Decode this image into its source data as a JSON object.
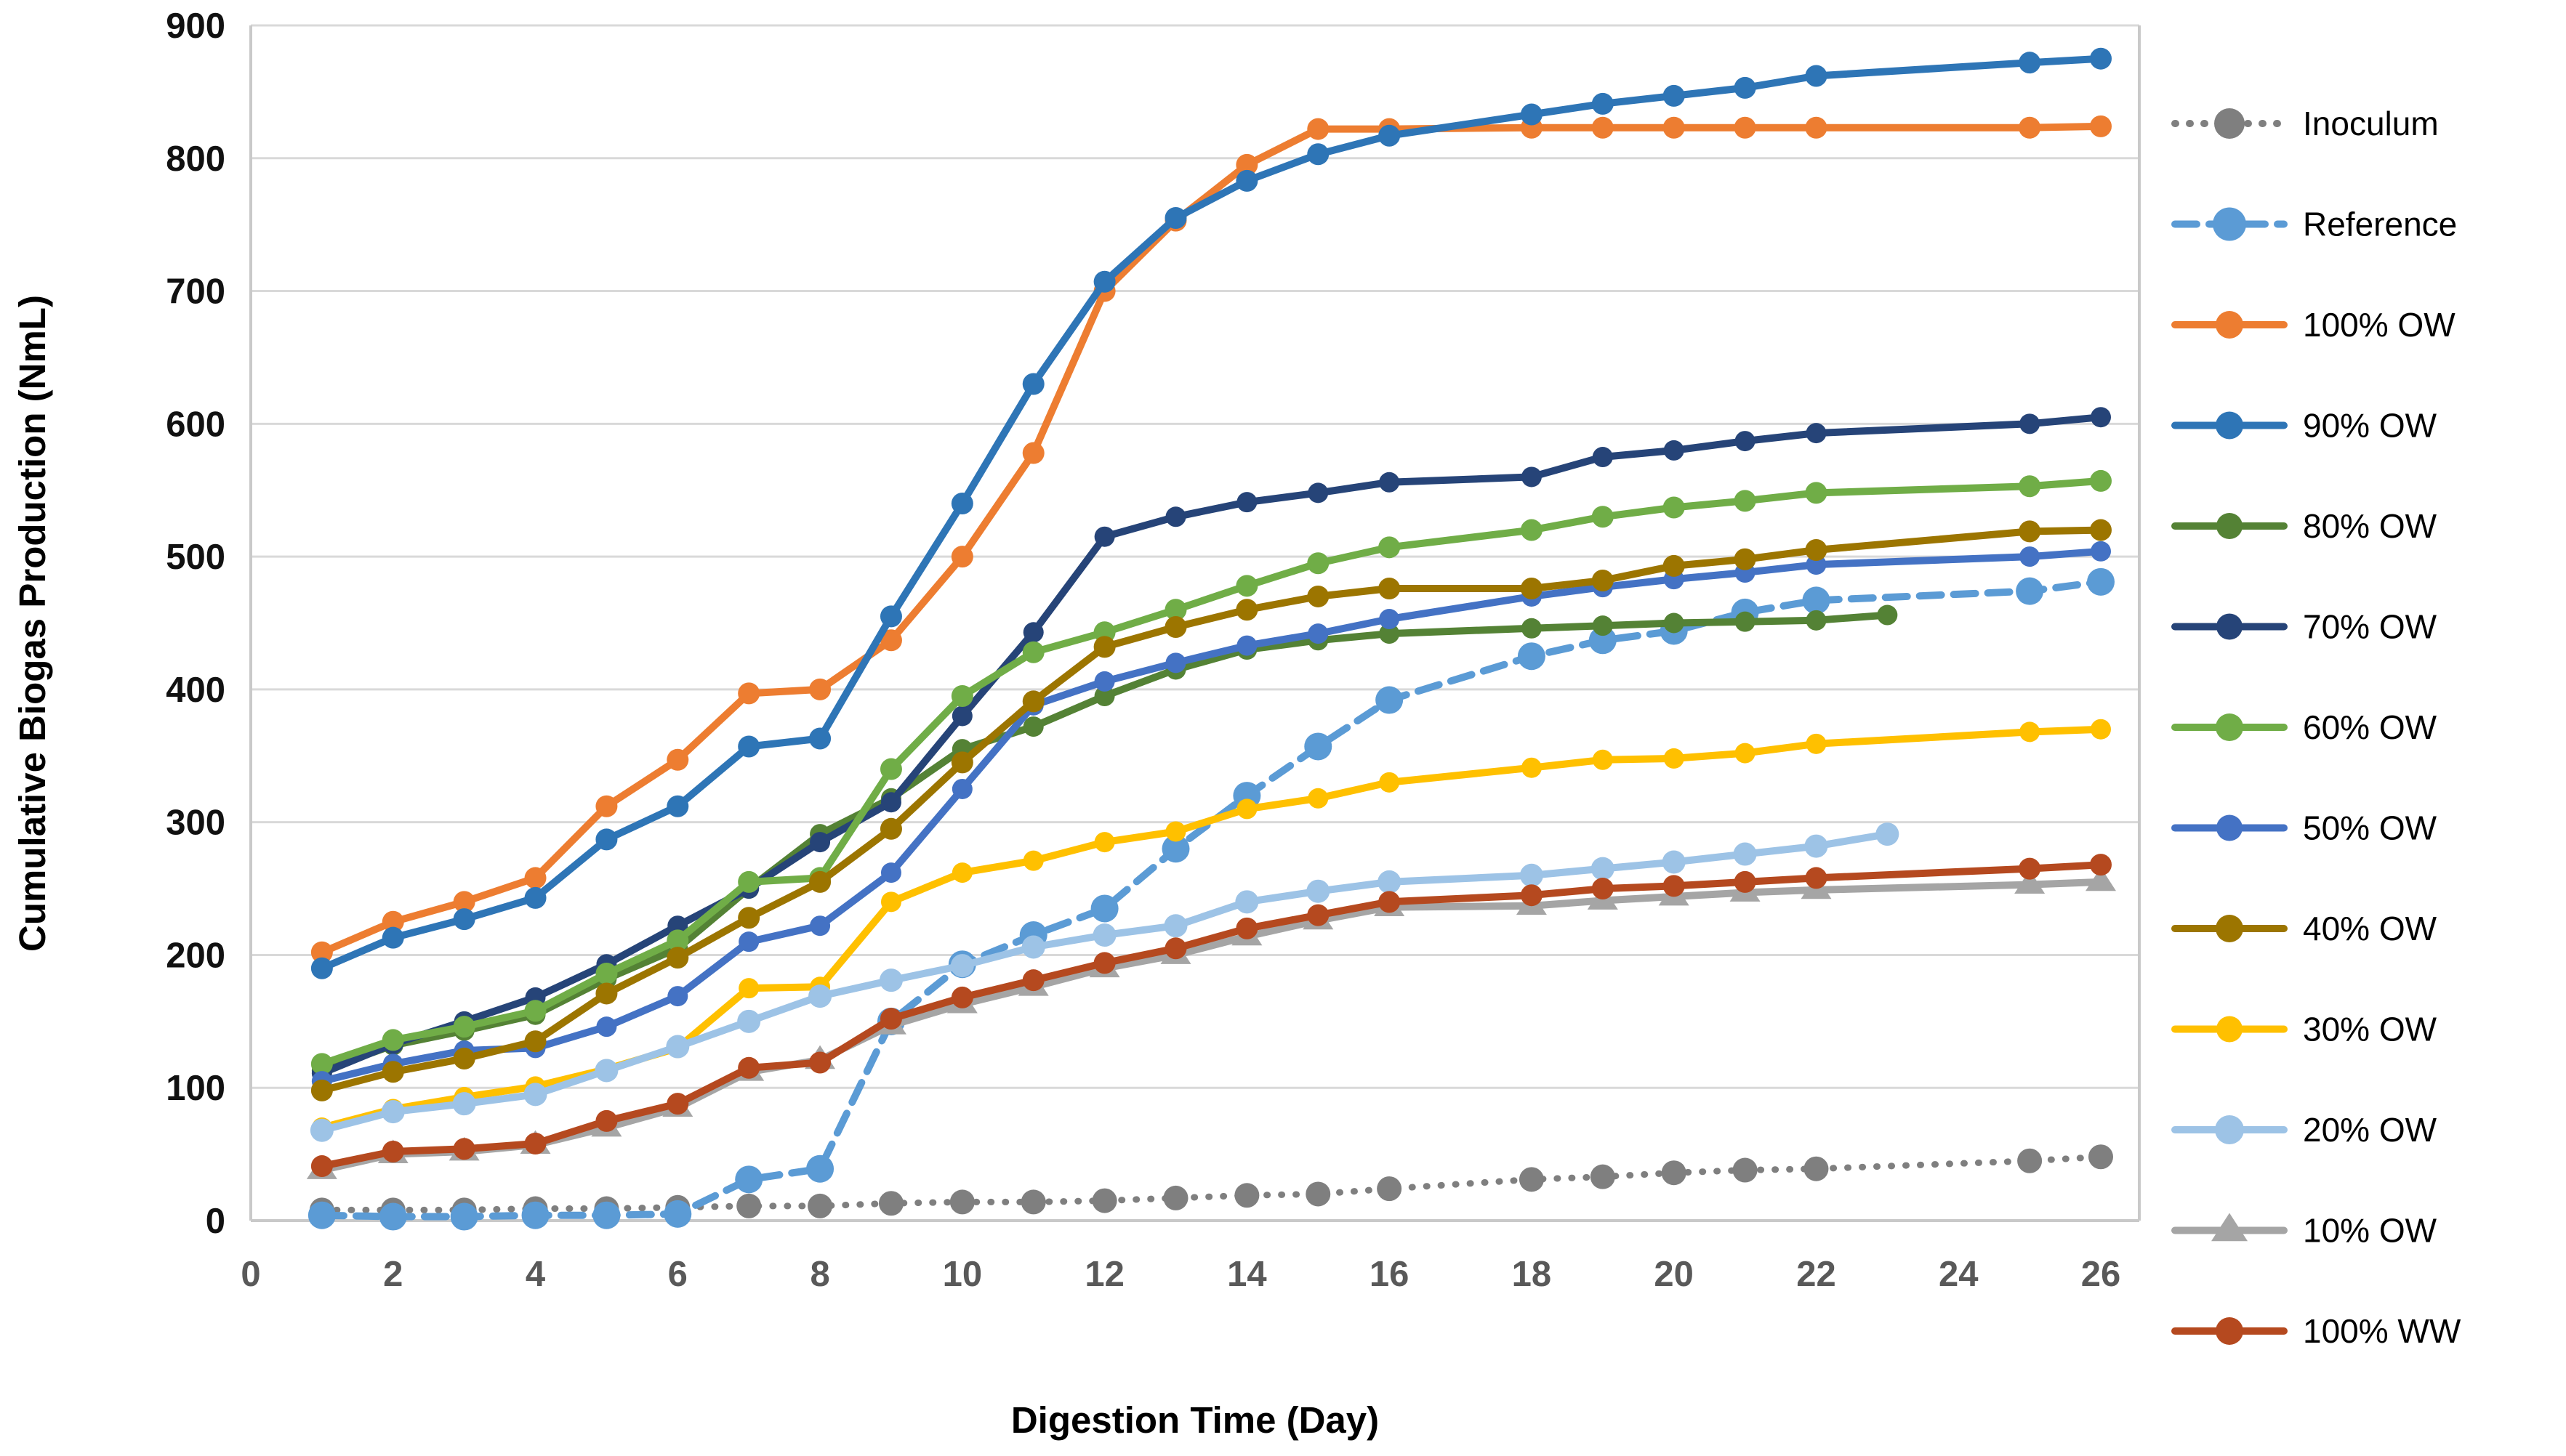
{
  "chart_data": {
    "type": "line",
    "title": "",
    "xlabel": "Digestion Time (Day)",
    "ylabel": "Cumulative Biogas Production (NmL)",
    "xlim": [
      0,
      26
    ],
    "ylim": [
      0,
      900
    ],
    "xticks": [
      0,
      2,
      4,
      6,
      8,
      10,
      12,
      14,
      16,
      18,
      20,
      22,
      24,
      26
    ],
    "yticks": [
      0,
      100,
      200,
      300,
      400,
      500,
      600,
      700,
      800,
      900
    ],
    "grid": true,
    "grid_color": "#D9D9D9",
    "spine_color": "#C9C9C9",
    "legend_position": "right",
    "series": [
      {
        "name": "Inoculum",
        "color": "#7F7F7F",
        "line": "dotted",
        "marker": "circle",
        "marker_r": 17,
        "points": [
          [
            1,
            8
          ],
          [
            2,
            8
          ],
          [
            3,
            8
          ],
          [
            4,
            9
          ],
          [
            5,
            9
          ],
          [
            6,
            10
          ],
          [
            7,
            11
          ],
          [
            8,
            11
          ],
          [
            9,
            13
          ],
          [
            10,
            14
          ],
          [
            11,
            14
          ],
          [
            12,
            15
          ],
          [
            13,
            17
          ],
          [
            14,
            19
          ],
          [
            15,
            20
          ],
          [
            16,
            24
          ],
          [
            18,
            31
          ],
          [
            19,
            33
          ],
          [
            20,
            36
          ],
          [
            21,
            38
          ],
          [
            22,
            39
          ],
          [
            25,
            45
          ],
          [
            26,
            48
          ]
        ]
      },
      {
        "name": "Reference",
        "color": "#5B9BD5",
        "line": "dashed",
        "marker": "circle",
        "marker_r": 19,
        "points": [
          [
            1,
            4
          ],
          [
            2,
            3
          ],
          [
            3,
            3
          ],
          [
            4,
            4
          ],
          [
            5,
            4
          ],
          [
            6,
            5
          ],
          [
            7,
            31
          ],
          [
            8,
            39
          ],
          [
            9,
            150
          ],
          [
            10,
            193
          ],
          [
            11,
            215
          ],
          [
            12,
            235
          ],
          [
            13,
            280
          ],
          [
            14,
            320
          ],
          [
            15,
            357
          ],
          [
            16,
            392
          ],
          [
            18,
            425
          ],
          [
            19,
            437
          ],
          [
            20,
            444
          ],
          [
            21,
            458
          ],
          [
            22,
            467
          ],
          [
            25,
            474
          ],
          [
            26,
            481
          ]
        ]
      },
      {
        "name": "100% OW",
        "color": "#ED7D31",
        "line": "solid",
        "marker": "circle",
        "marker_r": 15,
        "points": [
          [
            1,
            202
          ],
          [
            2,
            225
          ],
          [
            3,
            240
          ],
          [
            4,
            258
          ],
          [
            5,
            312
          ],
          [
            6,
            347
          ],
          [
            7,
            397
          ],
          [
            8,
            400
          ],
          [
            9,
            437
          ],
          [
            10,
            500
          ],
          [
            11,
            578
          ],
          [
            12,
            700
          ],
          [
            13,
            753
          ],
          [
            14,
            795
          ],
          [
            15,
            822
          ],
          [
            16,
            822
          ],
          [
            18,
            823
          ],
          [
            19,
            823
          ],
          [
            20,
            823
          ],
          [
            21,
            823
          ],
          [
            22,
            823
          ],
          [
            25,
            823
          ],
          [
            26,
            824
          ]
        ]
      },
      {
        "name": "90% OW",
        "color": "#2E75B6",
        "line": "solid",
        "marker": "circle",
        "marker_r": 15,
        "points": [
          [
            1,
            190
          ],
          [
            2,
            213
          ],
          [
            3,
            227
          ],
          [
            4,
            243
          ],
          [
            5,
            287
          ],
          [
            6,
            312
          ],
          [
            7,
            357
          ],
          [
            8,
            363
          ],
          [
            9,
            455
          ],
          [
            10,
            540
          ],
          [
            11,
            630
          ],
          [
            12,
            707
          ],
          [
            13,
            755
          ],
          [
            14,
            783
          ],
          [
            15,
            803
          ],
          [
            16,
            817
          ],
          [
            18,
            833
          ],
          [
            19,
            841
          ],
          [
            20,
            847
          ],
          [
            21,
            853
          ],
          [
            22,
            862
          ],
          [
            25,
            872
          ],
          [
            26,
            875
          ]
        ]
      },
      {
        "name": "80% OW",
        "color": "#548235",
        "line": "solid",
        "marker": "circle",
        "marker_r": 14,
        "points": [
          [
            1,
            113
          ],
          [
            2,
            132
          ],
          [
            3,
            143
          ],
          [
            4,
            155
          ],
          [
            5,
            182
          ],
          [
            6,
            205
          ],
          [
            7,
            250
          ],
          [
            8,
            291
          ],
          [
            9,
            318
          ],
          [
            10,
            355
          ],
          [
            11,
            372
          ],
          [
            12,
            395
          ],
          [
            13,
            415
          ],
          [
            14,
            430
          ],
          [
            15,
            437
          ],
          [
            16,
            442
          ],
          [
            18,
            446
          ],
          [
            19,
            448
          ],
          [
            20,
            450
          ],
          [
            21,
            451
          ],
          [
            22,
            452
          ],
          [
            23,
            456
          ]
        ]
      },
      {
        "name": "70% OW",
        "color": "#264478",
        "line": "solid",
        "marker": "circle",
        "marker_r": 14,
        "points": [
          [
            1,
            111
          ],
          [
            2,
            133
          ],
          [
            3,
            150
          ],
          [
            4,
            168
          ],
          [
            5,
            193
          ],
          [
            6,
            222
          ],
          [
            7,
            250
          ],
          [
            8,
            285
          ],
          [
            9,
            315
          ],
          [
            10,
            380
          ],
          [
            11,
            443
          ],
          [
            12,
            515
          ],
          [
            13,
            530
          ],
          [
            14,
            541
          ],
          [
            15,
            548
          ],
          [
            16,
            556
          ],
          [
            18,
            560
          ],
          [
            19,
            575
          ],
          [
            20,
            580
          ],
          [
            21,
            587
          ],
          [
            22,
            593
          ],
          [
            25,
            600
          ],
          [
            26,
            605
          ]
        ]
      },
      {
        "name": "60% OW",
        "color": "#70AD47",
        "line": "solid",
        "marker": "circle",
        "marker_r": 15,
        "points": [
          [
            1,
            118
          ],
          [
            2,
            136
          ],
          [
            3,
            146
          ],
          [
            4,
            158
          ],
          [
            5,
            186
          ],
          [
            6,
            211
          ],
          [
            7,
            255
          ],
          [
            8,
            258
          ],
          [
            9,
            340
          ],
          [
            10,
            395
          ],
          [
            11,
            428
          ],
          [
            12,
            443
          ],
          [
            13,
            460
          ],
          [
            14,
            478
          ],
          [
            15,
            495
          ],
          [
            16,
            507
          ],
          [
            18,
            520
          ],
          [
            19,
            530
          ],
          [
            20,
            537
          ],
          [
            21,
            542
          ],
          [
            22,
            548
          ],
          [
            25,
            553
          ],
          [
            26,
            557
          ]
        ]
      },
      {
        "name": "50% OW",
        "color": "#4472C4",
        "line": "solid",
        "marker": "circle",
        "marker_r": 14,
        "points": [
          [
            1,
            105
          ],
          [
            2,
            118
          ],
          [
            3,
            128
          ],
          [
            4,
            130
          ],
          [
            5,
            146
          ],
          [
            6,
            169
          ],
          [
            7,
            210
          ],
          [
            8,
            222
          ],
          [
            9,
            262
          ],
          [
            10,
            325
          ],
          [
            11,
            388
          ],
          [
            12,
            406
          ],
          [
            13,
            420
          ],
          [
            14,
            433
          ],
          [
            15,
            442
          ],
          [
            16,
            453
          ],
          [
            18,
            470
          ],
          [
            19,
            477
          ],
          [
            20,
            483
          ],
          [
            21,
            488
          ],
          [
            22,
            494
          ],
          [
            25,
            500
          ],
          [
            26,
            504
          ]
        ]
      },
      {
        "name": "40% OW",
        "color": "#9C7500",
        "line": "solid",
        "marker": "circle",
        "marker_r": 15,
        "points": [
          [
            1,
            98
          ],
          [
            2,
            112
          ],
          [
            3,
            122
          ],
          [
            4,
            135
          ],
          [
            5,
            171
          ],
          [
            6,
            198
          ],
          [
            7,
            228
          ],
          [
            8,
            255
          ],
          [
            9,
            295
          ],
          [
            10,
            345
          ],
          [
            11,
            391
          ],
          [
            12,
            432
          ],
          [
            13,
            447
          ],
          [
            14,
            460
          ],
          [
            15,
            470
          ],
          [
            16,
            476
          ],
          [
            18,
            476
          ],
          [
            19,
            482
          ],
          [
            20,
            493
          ],
          [
            21,
            498
          ],
          [
            22,
            505
          ],
          [
            25,
            519
          ],
          [
            26,
            520
          ]
        ]
      },
      {
        "name": "30% OW",
        "color": "#FFC000",
        "line": "solid",
        "marker": "circle",
        "marker_r": 14,
        "points": [
          [
            1,
            70
          ],
          [
            2,
            84
          ],
          [
            3,
            93
          ],
          [
            4,
            101
          ],
          [
            5,
            114
          ],
          [
            6,
            130
          ],
          [
            7,
            175
          ],
          [
            8,
            176
          ],
          [
            9,
            240
          ],
          [
            10,
            262
          ],
          [
            11,
            271
          ],
          [
            12,
            285
          ],
          [
            13,
            293
          ],
          [
            14,
            310
          ],
          [
            15,
            318
          ],
          [
            16,
            330
          ],
          [
            18,
            341
          ],
          [
            19,
            347
          ],
          [
            20,
            348
          ],
          [
            21,
            352
          ],
          [
            22,
            359
          ],
          [
            25,
            368
          ],
          [
            26,
            370
          ]
        ]
      },
      {
        "name": "20% OW",
        "color": "#9DC3E6",
        "line": "solid",
        "marker": "circle",
        "marker_r": 16,
        "points": [
          [
            1,
            68
          ],
          [
            2,
            82
          ],
          [
            3,
            88
          ],
          [
            4,
            95
          ],
          [
            5,
            113
          ],
          [
            6,
            131
          ],
          [
            7,
            150
          ],
          [
            8,
            169
          ],
          [
            9,
            181
          ],
          [
            10,
            192
          ],
          [
            11,
            206
          ],
          [
            12,
            215
          ],
          [
            13,
            222
          ],
          [
            14,
            240
          ],
          [
            15,
            248
          ],
          [
            16,
            255
          ],
          [
            18,
            260
          ],
          [
            19,
            265
          ],
          [
            20,
            270
          ],
          [
            21,
            276
          ],
          [
            22,
            282
          ],
          [
            23,
            291
          ]
        ]
      },
      {
        "name": "10% OW",
        "color": "#A5A5A5",
        "line": "solid",
        "marker": "triangle",
        "marker_r": 21,
        "points": [
          [
            1,
            38
          ],
          [
            2,
            50
          ],
          [
            3,
            52
          ],
          [
            4,
            57
          ],
          [
            5,
            70
          ],
          [
            6,
            85
          ],
          [
            7,
            112
          ],
          [
            8,
            121
          ],
          [
            9,
            147
          ],
          [
            10,
            163
          ],
          [
            11,
            176
          ],
          [
            12,
            190
          ],
          [
            13,
            200
          ],
          [
            14,
            214
          ],
          [
            15,
            226
          ],
          [
            16,
            236
          ],
          [
            18,
            237
          ],
          [
            19,
            241
          ],
          [
            20,
            244
          ],
          [
            21,
            247
          ],
          [
            22,
            249
          ],
          [
            25,
            253
          ],
          [
            26,
            255
          ]
        ]
      },
      {
        "name": "100% WW",
        "color": "#B5491F",
        "line": "solid",
        "marker": "circle",
        "marker_r": 15,
        "points": [
          [
            1,
            41
          ],
          [
            2,
            52
          ],
          [
            3,
            54
          ],
          [
            4,
            58
          ],
          [
            5,
            75
          ],
          [
            6,
            88
          ],
          [
            7,
            115
          ],
          [
            8,
            119
          ],
          [
            9,
            152
          ],
          [
            10,
            168
          ],
          [
            11,
            181
          ],
          [
            12,
            194
          ],
          [
            13,
            205
          ],
          [
            14,
            220
          ],
          [
            15,
            230
          ],
          [
            16,
            240
          ],
          [
            18,
            245
          ],
          [
            19,
            250
          ],
          [
            20,
            252
          ],
          [
            21,
            255
          ],
          [
            22,
            258
          ],
          [
            25,
            265
          ],
          [
            26,
            268
          ]
        ]
      }
    ]
  }
}
